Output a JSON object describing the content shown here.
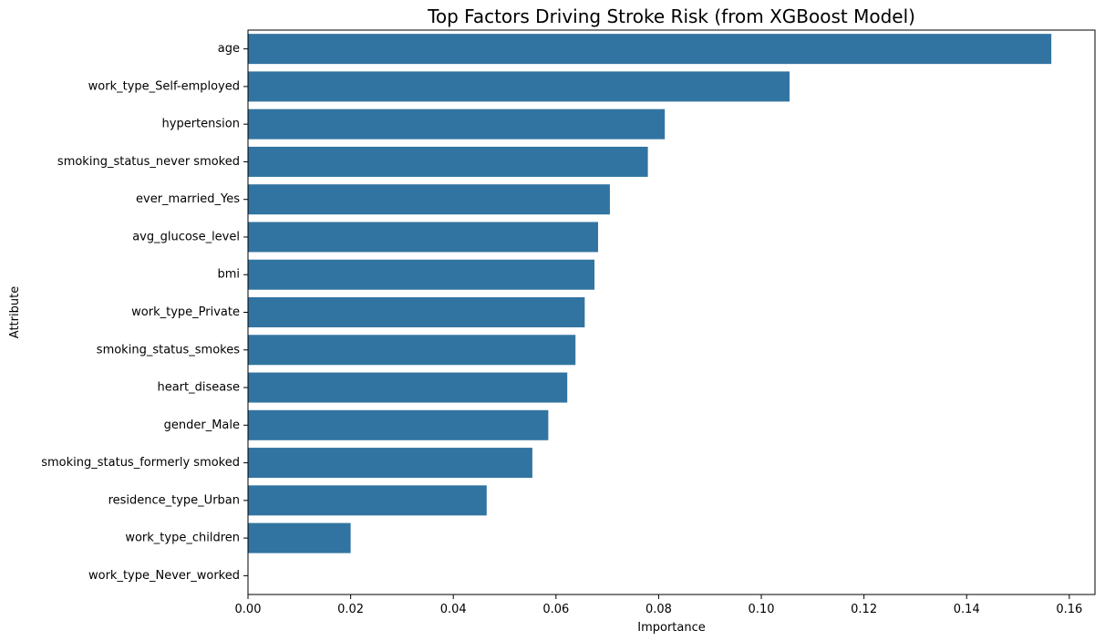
{
  "chart_data": {
    "type": "bar",
    "orientation": "horizontal",
    "title": "Top Factors Driving Stroke Risk (from XGBoost Model)",
    "xlabel": "Importance",
    "ylabel": "Attribute",
    "xlim": [
      0,
      0.165
    ],
    "xticks": [
      0,
      0.02,
      0.04,
      0.06,
      0.08,
      0.1,
      0.12,
      0.14,
      0.16
    ],
    "xtick_labels": [
      "0.00",
      "0.02",
      "0.04",
      "0.06",
      "0.08",
      "0.10",
      "0.12",
      "0.14",
      "0.16"
    ],
    "grid": false,
    "bar_color": "#3274a1",
    "categories": [
      "age",
      "work_type_Self-employed",
      "hypertension",
      "smoking_status_never smoked",
      "ever_married_Yes",
      "avg_glucose_level",
      "bmi",
      "work_type_Private",
      "smoking_status_smokes",
      "heart_disease",
      "gender_Male",
      "smoking_status_formerly smoked",
      "residence_type_Urban",
      "work_type_children",
      "work_type_Never_worked"
    ],
    "values": [
      0.1565,
      0.1055,
      0.0812,
      0.0779,
      0.0705,
      0.0682,
      0.0675,
      0.0656,
      0.0638,
      0.0622,
      0.0585,
      0.0554,
      0.0465,
      0.02,
      0.0
    ]
  }
}
